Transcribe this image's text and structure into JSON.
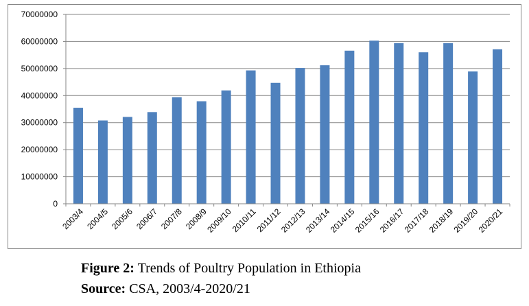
{
  "chart_data": {
    "type": "bar",
    "categories": [
      "2003/4",
      "2004/5",
      "2005/6",
      "2006/7",
      "2007/8",
      "2008/9",
      "2009/10",
      "2010/11",
      "2011/12",
      "2012/13",
      "2013/14",
      "2014/15",
      "2015/16",
      "2016/17",
      "2017/18",
      "2018/19",
      "2019/20",
      "2020/21"
    ],
    "values": [
      35500000,
      30800000,
      32100000,
      33900000,
      39400000,
      37900000,
      41900000,
      49300000,
      44700000,
      50200000,
      51200000,
      56600000,
      60300000,
      59400000,
      56000000,
      59400000,
      48900000,
      57100000
    ],
    "ylim": [
      0,
      70000000
    ],
    "yticks": [
      "0",
      "10000000",
      "20000000",
      "30000000",
      "40000000",
      "50000000",
      "60000000",
      "70000000"
    ],
    "grid": true,
    "bar_color": "#4f81bd",
    "gridline_color": "#868686"
  },
  "caption": {
    "figure_label": "Figure 2:",
    "figure_text": " Trends of Poultry Population in Ethiopia",
    "source_label": "Source:",
    "source_text": " CSA, 2003/4-2020/21"
  }
}
